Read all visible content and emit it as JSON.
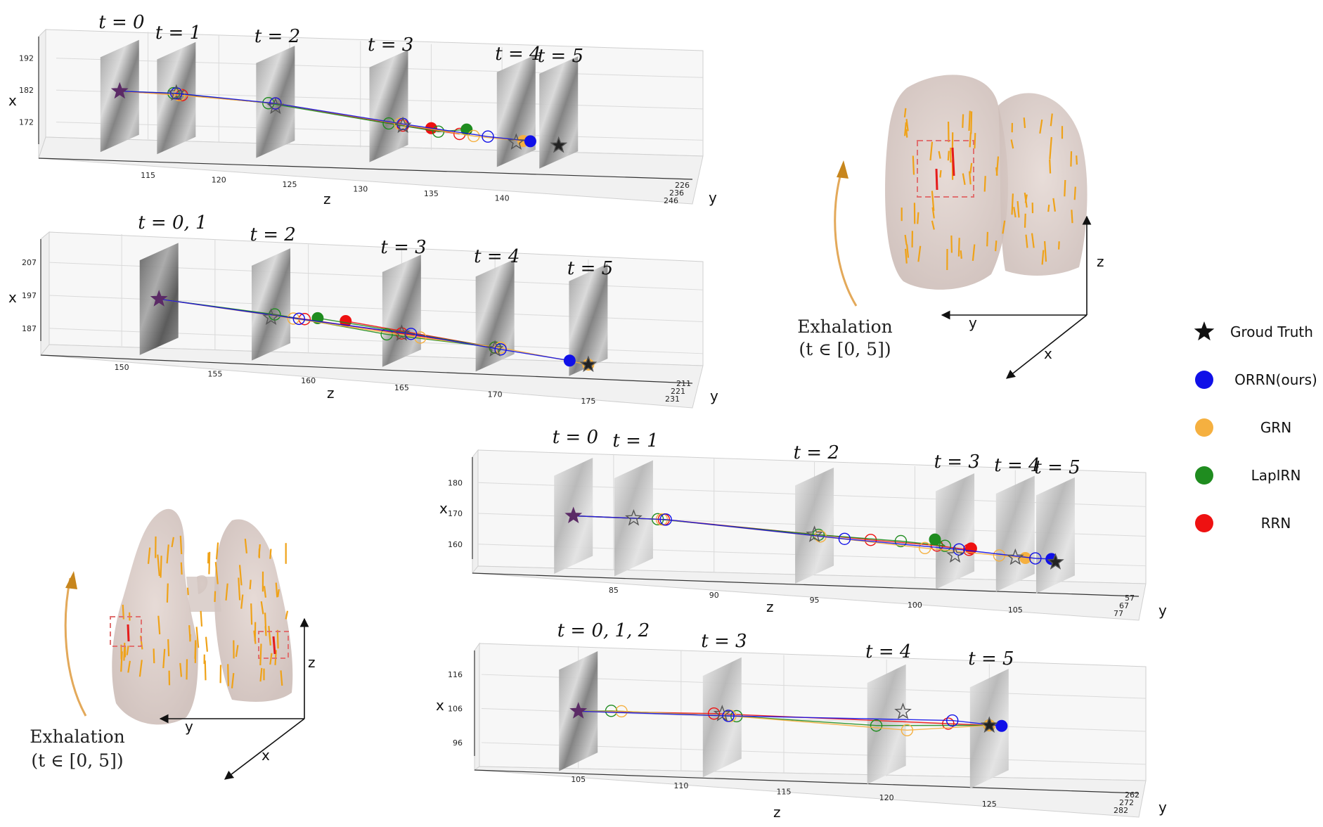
{
  "colors": {
    "gt": "#111111",
    "orrn": "#1010e8",
    "grn": "#f5b040",
    "lapirn": "#1f8c1f",
    "rrn": "#ee1111",
    "accent": "#e3a040",
    "lung": "#d9cbc6"
  },
  "legend": [
    {
      "label": "Groud Truth",
      "key": "gt",
      "marker": "star"
    },
    {
      "label": "ORRN(ours)",
      "key": "orrn",
      "marker": "dot"
    },
    {
      "label": "GRN",
      "key": "grn",
      "marker": "dot"
    },
    {
      "label": "LapIRN",
      "key": "lapirn",
      "marker": "dot"
    },
    {
      "label": "RRN",
      "key": "rrn",
      "marker": "dot"
    }
  ],
  "insets": [
    {
      "axis_x": "x",
      "axis_y": "y",
      "axis_z": "z",
      "caption_line1": "Exhalation",
      "caption_line2": "(t ∈ [0, 5])"
    },
    {
      "axis_x": "x",
      "axis_y": "y",
      "axis_z": "z",
      "caption_line1": "Exhalation",
      "caption_line2": "(t ∈ [0, 5])"
    }
  ],
  "chart_data": [
    {
      "type": "scatter",
      "title": "",
      "xlabel": "z",
      "ylabel": "x",
      "zlabel": "y",
      "z_ticks": [
        115,
        120,
        125,
        130,
        135,
        140
      ],
      "x_ticks": [
        172,
        182,
        192
      ],
      "y_ticks": [
        226,
        236,
        246
      ],
      "zlim": [
        111,
        146
      ],
      "xlim": [
        164,
        197
      ],
      "time_labels": [
        "t = 0",
        "t = 1",
        "t = 2",
        "t = 3",
        "t = 4",
        "t = 5"
      ],
      "slice_z": [
        113,
        117,
        124,
        132,
        141,
        144
      ],
      "series": [
        {
          "name": "Groud Truth",
          "key": "gt",
          "points": [
            [
              113,
              182
            ],
            [
              117,
              182
            ],
            [
              124,
              179
            ],
            [
              133,
              174.5
            ],
            [
              141,
              170.5
            ],
            [
              144,
              170
            ]
          ]
        },
        {
          "name": "ORRN(ours)",
          "key": "orrn",
          "points": [
            [
              113,
              182
            ],
            [
              117,
              182
            ],
            [
              124,
              180
            ],
            [
              133,
              175
            ],
            [
              139,
              172
            ],
            [
              142,
              171
            ]
          ]
        },
        {
          "name": "GRN",
          "key": "grn",
          "points": [
            [
              113,
              182
            ],
            [
              117.2,
              181.5
            ],
            [
              124,
              180
            ],
            [
              132.8,
              175
            ],
            [
              138,
              172
            ],
            [
              141.5,
              171
            ]
          ]
        },
        {
          "name": "LapIRN",
          "key": "lapirn",
          "points": [
            [
              113,
              182
            ],
            [
              116.8,
              182
            ],
            [
              123.5,
              180
            ],
            [
              132,
              175
            ],
            [
              135.5,
              173
            ],
            [
              137.5,
              174
            ]
          ]
        },
        {
          "name": "RRN",
          "key": "rrn",
          "points": [
            [
              113,
              182
            ],
            [
              117.4,
              181.5
            ],
            [
              124,
              180
            ],
            [
              133,
              174.5
            ],
            [
              137,
              172.5
            ],
            [
              135,
              174
            ]
          ]
        }
      ]
    },
    {
      "type": "scatter",
      "title": "",
      "xlabel": "z",
      "ylabel": "x",
      "zlabel": "y",
      "z_ticks": [
        150,
        155,
        160,
        165,
        170,
        175
      ],
      "x_ticks": [
        187,
        197,
        207
      ],
      "y_ticks": [
        211,
        221,
        231
      ],
      "zlim": [
        148,
        177
      ],
      "xlim": [
        181,
        213
      ],
      "time_labels": [
        "t = 0, 1",
        "t = 2",
        "t = 3",
        "t = 4",
        "t = 5"
      ],
      "slice_z": [
        152,
        158,
        165,
        170,
        175
      ],
      "series": [
        {
          "name": "Groud Truth",
          "key": "gt",
          "points": [
            [
              152,
              197
            ],
            [
              158,
              193
            ],
            [
              165,
              190
            ],
            [
              170,
              186.5
            ],
            [
              175,
              183
            ]
          ]
        },
        {
          "name": "ORRN(ours)",
          "key": "orrn",
          "points": [
            [
              152,
              197
            ],
            [
              159.5,
              193
            ],
            [
              165.5,
              190
            ],
            [
              170.3,
              186.5
            ],
            [
              174,
              184
            ]
          ]
        },
        {
          "name": "GRN",
          "key": "grn",
          "points": [
            [
              152,
              197
            ],
            [
              159.2,
              193
            ],
            [
              166,
              189
            ],
            [
              170.3,
              187
            ],
            [
              175,
              183
            ]
          ]
        },
        {
          "name": "LapIRN",
          "key": "lapirn",
          "points": [
            [
              152,
              197
            ],
            [
              158.2,
              194
            ],
            [
              164.2,
              189.5
            ],
            [
              170,
              187
            ],
            [
              160.5,
              193.5
            ]
          ]
        },
        {
          "name": "RRN",
          "key": "rrn",
          "points": [
            [
              152,
              197
            ],
            [
              159.8,
              193
            ],
            [
              165,
              190
            ],
            [
              170,
              187
            ],
            [
              162,
              193
            ]
          ]
        }
      ]
    },
    {
      "type": "scatter",
      "title": "",
      "xlabel": "z",
      "ylabel": "x",
      "zlabel": "y",
      "z_ticks": [
        85,
        90,
        95,
        100,
        105
      ],
      "x_ticks": [
        160,
        170,
        180
      ],
      "y_ticks": [
        57,
        67,
        77
      ],
      "zlim": [
        80,
        108
      ],
      "xlim": [
        154,
        186
      ],
      "time_labels": [
        "t = 0",
        "t = 1",
        "t = 2",
        "t = 3",
        "t = 4",
        "t = 5"
      ],
      "slice_z": [
        83,
        86,
        95,
        102,
        105,
        107
      ],
      "series": [
        {
          "name": "Groud Truth",
          "key": "gt",
          "points": [
            [
              83,
              170
            ],
            [
              86,
              170
            ],
            [
              95,
              167
            ],
            [
              102,
              162
            ],
            [
              105,
              162
            ],
            [
              107,
              161
            ]
          ]
        },
        {
          "name": "ORRN(ours)",
          "key": "orrn",
          "points": [
            [
              83,
              170
            ],
            [
              87.6,
              170
            ],
            [
              96.5,
              166
            ],
            [
              102.2,
              164
            ],
            [
              106,
              162
            ],
            [
              106.8,
              162
            ]
          ]
        },
        {
          "name": "GRN",
          "key": "grn",
          "points": [
            [
              83,
              170
            ],
            [
              87.4,
              170
            ],
            [
              95.3,
              166.5
            ],
            [
              100.5,
              164
            ],
            [
              104.2,
              162.5
            ],
            [
              105.5,
              162
            ]
          ]
        },
        {
          "name": "LapIRN",
          "key": "lapirn",
          "points": [
            [
              83,
              170
            ],
            [
              87.2,
              170
            ],
            [
              95.2,
              167
            ],
            [
              99.3,
              166
            ],
            [
              101.5,
              165
            ],
            [
              101,
              167
            ]
          ]
        },
        {
          "name": "RRN",
          "key": "rrn",
          "points": [
            [
              83,
              170
            ],
            [
              87.5,
              170
            ],
            [
              97.8,
              166
            ],
            [
              101.1,
              165
            ],
            [
              102.7,
              164
            ],
            [
              102.8,
              164.5
            ]
          ]
        }
      ]
    },
    {
      "type": "scatter",
      "title": "",
      "xlabel": "z",
      "ylabel": "x",
      "zlabel": "y",
      "z_ticks": [
        105,
        110,
        115,
        120,
        125
      ],
      "x_ticks": [
        96,
        106,
        116
      ],
      "y_ticks": [
        262,
        272,
        282
      ],
      "zlim": [
        102,
        128
      ],
      "xlim": [
        90,
        122
      ],
      "time_labels": [
        "t = 0, 1, 2",
        "t = 3",
        "t = 4",
        "t = 5"
      ],
      "slice_z": [
        105,
        112,
        120,
        125
      ],
      "series": [
        {
          "name": "Groud Truth",
          "key": "gt",
          "points": [
            [
              105,
              106
            ],
            [
              112,
              107
            ],
            [
              120.8,
              110
            ],
            [
              125,
              107
            ]
          ]
        },
        {
          "name": "ORRN(ours)",
          "key": "orrn",
          "points": [
            [
              105,
              106
            ],
            [
              112.3,
              106.5
            ],
            [
              123.2,
              108
            ],
            [
              125.6,
              107
            ]
          ]
        },
        {
          "name": "GRN",
          "key": "grn",
          "points": [
            [
              105,
              106
            ],
            [
              107.1,
              106.5
            ],
            [
              112.4,
              106.5
            ],
            [
              121,
              104.5
            ],
            [
              125,
              107
            ]
          ]
        },
        {
          "name": "LapIRN",
          "key": "lapirn",
          "points": [
            [
              105,
              106
            ],
            [
              106.6,
              106.5
            ],
            [
              112.7,
              106.5
            ],
            [
              119.5,
              105.5
            ],
            [
              125,
              107
            ]
          ]
        },
        {
          "name": "RRN",
          "key": "rrn",
          "points": [
            [
              105,
              106
            ],
            [
              111.6,
              107
            ],
            [
              123,
              107
            ],
            [
              125,
              107
            ]
          ]
        }
      ]
    }
  ]
}
